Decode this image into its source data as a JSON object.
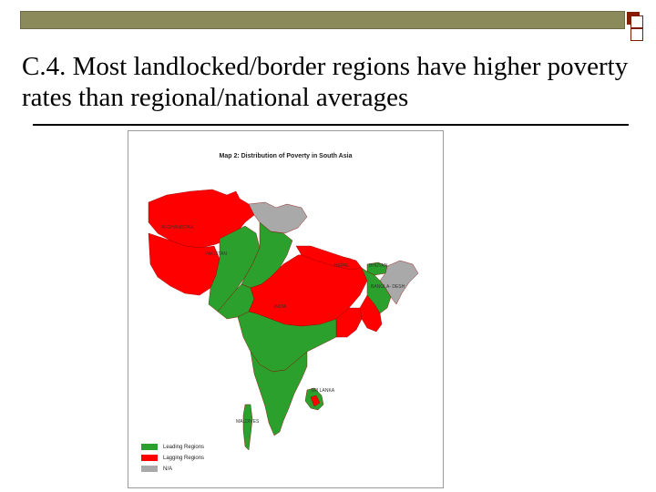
{
  "slide": {
    "title": "C.4. Most landlocked/border regions have higher poverty rates than regional/national averages"
  },
  "map": {
    "title": "Map 2: Distribution of Poverty in South Asia",
    "labels": {
      "afghanistan": "AFGHANISTAN",
      "pakistan": "PAKISTAN",
      "nepal": "NEPAL",
      "bhutan": "BHUTAN",
      "bangladesh": "BANGLA- DESH",
      "india": "INDIA",
      "sri_lanka": "SRI LANKA",
      "maldives": "MALDIVES"
    },
    "legend": [
      {
        "label": "Leading Regions",
        "color": "#2ca02c"
      },
      {
        "label": "Lagging Regions",
        "color": "#ff0000"
      },
      {
        "label": "N/A",
        "color": "#a9a9a9"
      }
    ]
  },
  "colors": {
    "leading": "#2ca02c",
    "lagging": "#ff0000",
    "na": "#a9a9a9",
    "border": "#8b0000"
  }
}
